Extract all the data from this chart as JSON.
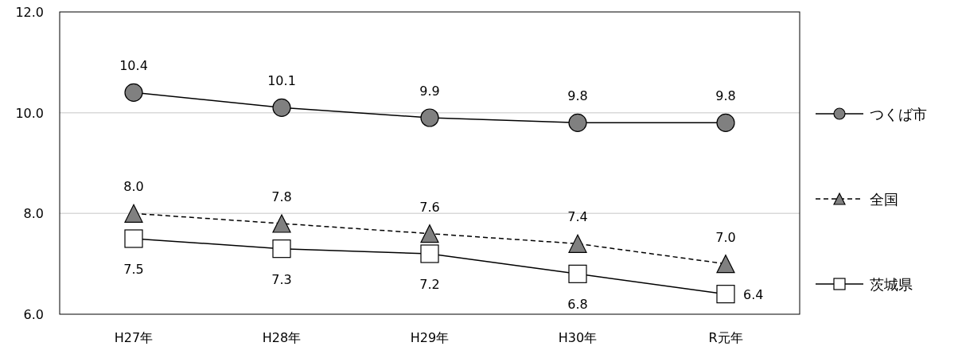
{
  "chart_data": {
    "type": "line",
    "categories": [
      "H27年",
      "H28年",
      "H29年",
      "H30年",
      "R元年"
    ],
    "series": [
      {
        "name": "つくば市",
        "color": "#808080",
        "marker": "circle",
        "line_style": "solid",
        "values": [
          10.4,
          10.1,
          9.9,
          9.8,
          9.8
        ],
        "value_labels": [
          "10.4",
          "10.1",
          "9.9",
          "9.8",
          "9.8"
        ]
      },
      {
        "name": "全国",
        "color": "#808080",
        "marker": "triangle",
        "line_style": "dashed",
        "values": [
          8.0,
          7.8,
          7.6,
          7.4,
          7.0
        ],
        "value_labels": [
          "8.0",
          "7.8",
          "7.6",
          "7.4",
          "7.0"
        ]
      },
      {
        "name": "茨城県",
        "color": "#ffffff",
        "marker": "square",
        "line_style": "solid",
        "values": [
          7.5,
          7.3,
          7.2,
          6.8,
          6.4
        ],
        "value_labels": [
          "7.5",
          "7.3",
          "7.2",
          "6.8",
          "6.4"
        ]
      }
    ],
    "ylim": [
      6.0,
      12.0
    ],
    "yticks": [
      {
        "value": 6,
        "label": "6.0"
      },
      {
        "value": 8,
        "label": "8.0"
      },
      {
        "value": 10,
        "label": "10.0"
      },
      {
        "value": 12,
        "label": "12.0"
      }
    ],
    "grid": "y",
    "legend": "right"
  }
}
